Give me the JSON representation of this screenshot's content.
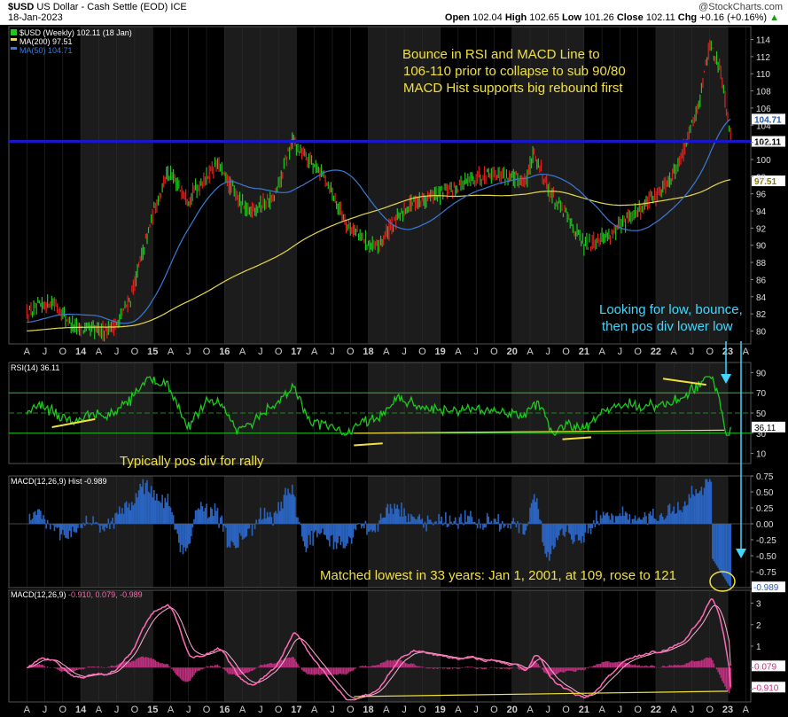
{
  "header": {
    "symbol": "$USD",
    "name": "US Dollar - Cash Settle (EOD)",
    "exchange": "ICE",
    "date": "18-Jan-2023",
    "watermark": "@StockCharts.com",
    "open_label": "Open",
    "open": "102.04",
    "high_label": "High",
    "high": "102.65",
    "low_label": "Low",
    "low": "101.26",
    "close_label": "Close",
    "close": "102.11",
    "chg_label": "Chg",
    "chg": "+0.16 (+0.16%)"
  },
  "colors": {
    "up": "#1ec81e",
    "down": "#e02020",
    "ma200": "#e8d848",
    "ma50": "#3a7ad8",
    "rsi": "#1ec81e",
    "hist": "#2a64c0",
    "macd": "#ff6ab4",
    "note": "#f0e040",
    "note2": "#40d8ff",
    "hline": "#1818c8"
  },
  "chart_data": [
    {
      "type": "candlestick",
      "legend": [
        "$USD (Weekly) 102.11 (18 Jan)",
        "MA(200) 97.51",
        "MA(50) 104.71"
      ],
      "ylim": [
        78.5,
        115.5
      ],
      "yticks": [
        80,
        82,
        84,
        86,
        88,
        90,
        92,
        94,
        96,
        98,
        100,
        102,
        104,
        106,
        108,
        110,
        112,
        114
      ],
      "x_labels": [
        "A",
        "J",
        "O",
        "14",
        "A",
        "J",
        "O",
        "15",
        "A",
        "J",
        "O",
        "16",
        "A",
        "J",
        "O",
        "17",
        "A",
        "J",
        "O",
        "18",
        "A",
        "J",
        "O",
        "19",
        "A",
        "J",
        "O",
        "20",
        "A",
        "J",
        "O",
        "21",
        "A",
        "J",
        "O",
        "22",
        "A",
        "J",
        "O",
        "23",
        "A"
      ],
      "price_series": {
        "name": "$USD (Weekly)",
        "x": [
          2013.25,
          2013.6,
          2013.9,
          2014.3,
          2014.5,
          2014.7,
          2015.0,
          2015.2,
          2015.5,
          2015.9,
          2016.0,
          2016.3,
          2016.7,
          2016.95,
          2017.0,
          2017.4,
          2017.7,
          2018.1,
          2018.3,
          2018.6,
          2019.0,
          2019.4,
          2019.7,
          2020.2,
          2020.3,
          2020.5,
          2020.8,
          2021.0,
          2021.4,
          2021.6,
          2022.0,
          2022.3,
          2022.6,
          2022.75,
          2022.9,
          2023.05
        ],
        "close": [
          82,
          83.5,
          80.5,
          80,
          80.8,
          84,
          93.5,
          98.5,
          95.5,
          99.5,
          98,
          94,
          95.5,
          102.5,
          101.5,
          98,
          92.5,
          89.5,
          92,
          95,
          96,
          97.5,
          98.5,
          97.5,
          101,
          96.5,
          93,
          90,
          91.5,
          93,
          95.8,
          99,
          106.5,
          113.5,
          110.5,
          102.11
        ]
      },
      "ma200_current": 97.51,
      "ma50_current": 104.71,
      "horizontal_line": 102.11,
      "price_label": "102.11",
      "ma50_label": "104.71",
      "ma200_label": "97.51",
      "annotations": [
        "Bounce in RSI and  MACD Line to",
        "106-110 prior to collapse to sub 90/80",
        "MACD Hist supports big rebound first",
        "Looking for low, bounce,",
        "then pos div lower low"
      ]
    },
    {
      "type": "line",
      "legend": "RSI(14) 36.11",
      "ylim": [
        0,
        100
      ],
      "yticks": [
        10,
        30,
        50,
        70,
        90
      ],
      "levels": [
        30,
        50,
        70
      ],
      "last_value": 36.11,
      "last_label": "36.11",
      "annotation": "Typically pos div for rally"
    },
    {
      "type": "bar",
      "legend": "MACD(12,26,9) Hist -0.989",
      "ylim": [
        -1.0,
        0.75
      ],
      "yticks": [
        0.75,
        0.5,
        0.25,
        0.0,
        -0.25,
        -0.5,
        -0.75
      ],
      "ytick_labels": [
        "0.75",
        "0.50",
        "0.25",
        "0.00",
        "-0.25",
        "-0.50",
        "-0.75"
      ],
      "last_value": -0.989,
      "last_label": "-0.989",
      "annotation": "Matched lowest in 33 years: Jan 1, 2001, at 109, rose to 121"
    },
    {
      "type": "line",
      "legend_prefix": "MACD(12,26,9)",
      "legend_values": "-0.910, 0.079, -0.989",
      "ylim": [
        -1.6,
        3.6
      ],
      "yticks": [
        3,
        2,
        1,
        0,
        -1
      ],
      "macd_last": -0.91,
      "signal_last": 0.079,
      "macd_label": "-0.910",
      "signal_label": "0.079"
    }
  ]
}
